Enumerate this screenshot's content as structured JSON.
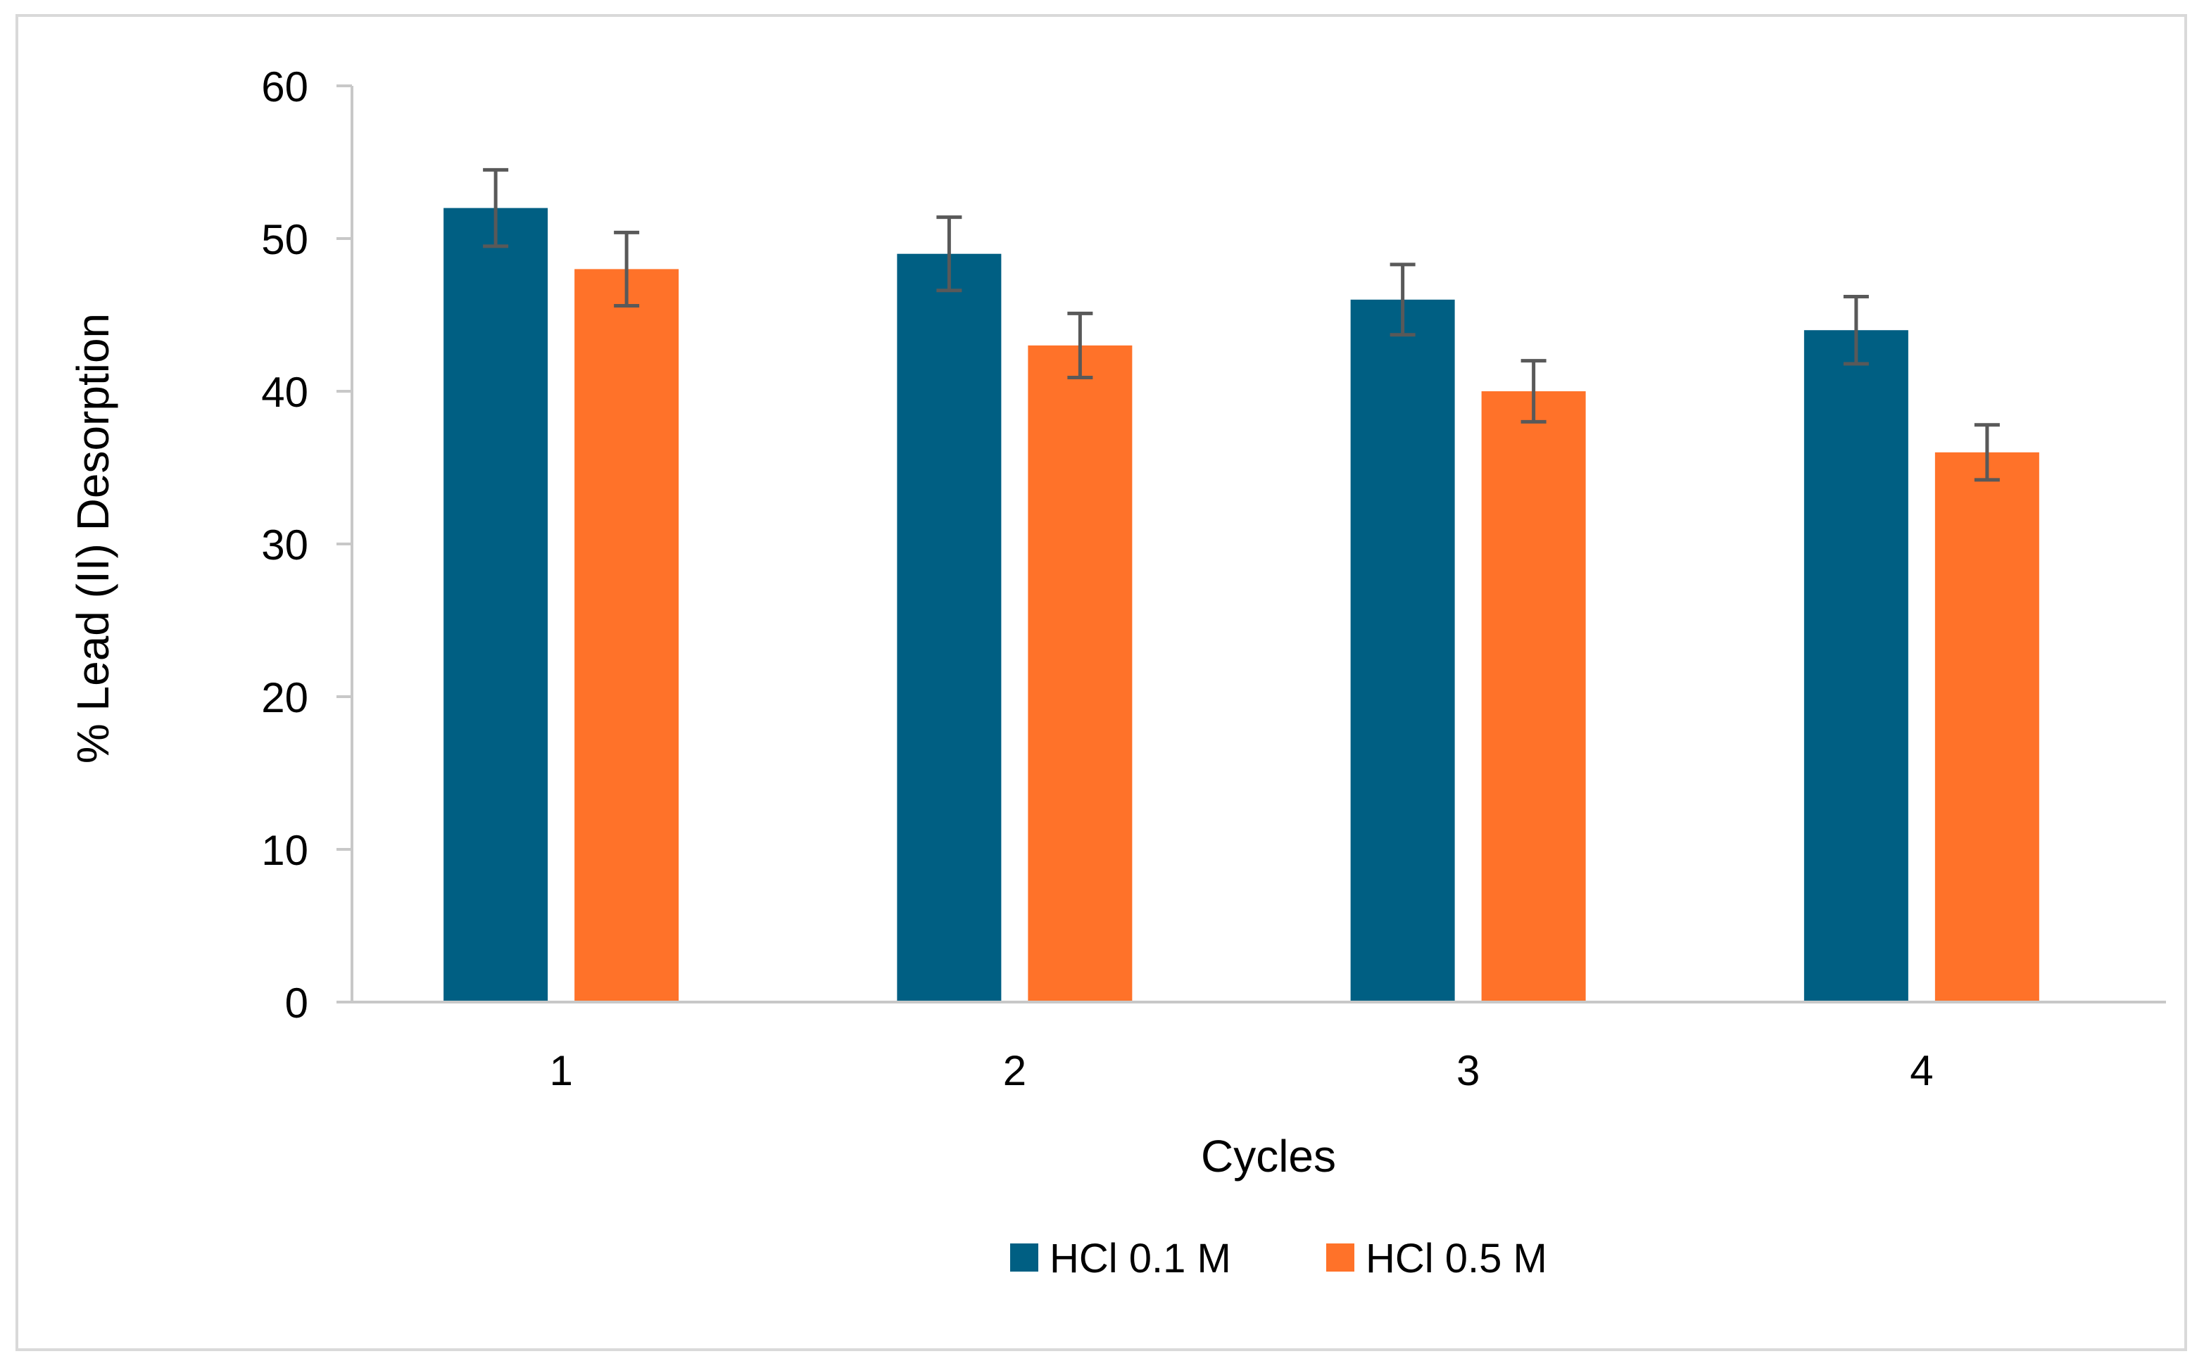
{
  "chart_data": {
    "type": "bar",
    "title": "",
    "xlabel": "Cycles",
    "ylabel": "% Lead (II) Desorption",
    "categories": [
      "1",
      "2",
      "3",
      "4"
    ],
    "ylim": [
      0,
      60
    ],
    "yticks": [
      0,
      10,
      20,
      30,
      40,
      50,
      60
    ],
    "grid": false,
    "legend_position": "bottom",
    "series": [
      {
        "name": "HCl 0.1 M",
        "color": "#005f83",
        "values": [
          52,
          49,
          46,
          44
        ],
        "errors": [
          2.5,
          2.4,
          2.3,
          2.2
        ]
      },
      {
        "name": "HCl 0.5 M",
        "color": "#ff7229",
        "values": [
          48,
          43,
          40,
          36
        ],
        "errors": [
          2.4,
          2.1,
          2.0,
          1.8
        ]
      }
    ],
    "error_bar_color": "#595959"
  }
}
